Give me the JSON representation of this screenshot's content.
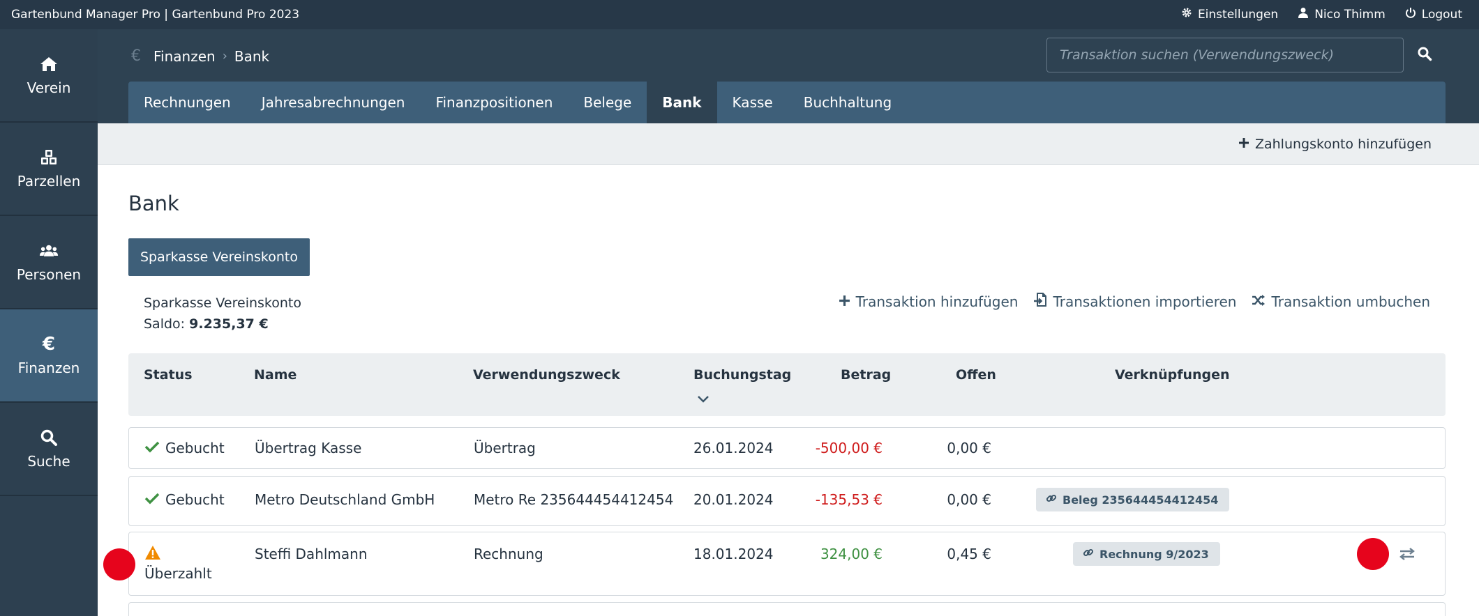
{
  "topbar": {
    "app_title": "Gartenbund Manager Pro | Gartenbund Pro 2023",
    "settings_label": "Einstellungen",
    "user_label": "Nico Thimm",
    "logout_label": "Logout"
  },
  "sidebar": {
    "items": [
      {
        "label": "Verein",
        "icon": "home-icon"
      },
      {
        "label": "Parzellen",
        "icon": "cubes-icon"
      },
      {
        "label": "Personen",
        "icon": "users-icon"
      },
      {
        "label": "Finanzen",
        "icon": "euro-icon",
        "active": true
      },
      {
        "label": "Suche",
        "icon": "search-icon"
      }
    ]
  },
  "breadcrumb": {
    "level1": "Finanzen",
    "level2": "Bank"
  },
  "search": {
    "placeholder": "Transaktion suchen (Verwendungszweck)"
  },
  "tabs": [
    "Rechnungen",
    "Jahresabrechnungen",
    "Finanzpositionen",
    "Belege",
    "Bank",
    "Kasse",
    "Buchhaltung"
  ],
  "active_tab": "Bank",
  "actionbar": {
    "add_account_label": "Zahlungskonto hinzufügen"
  },
  "page": {
    "title": "Bank",
    "account_button_label": "Sparkasse Vereinskonto",
    "account_name": "Sparkasse Vereinskonto",
    "saldo_label": "Saldo:",
    "saldo_value": "9.235,37 €"
  },
  "account_actions": {
    "add_label": "Transaktion hinzufügen",
    "import_label": "Transaktionen importieren",
    "rebook_label": "Transaktion umbuchen"
  },
  "table": {
    "headers": {
      "status": "Status",
      "name": "Name",
      "purpose": "Verwendungszweck",
      "date": "Buchungstag",
      "amount": "Betrag",
      "open": "Offen",
      "links": "Verknüpfungen"
    },
    "rows": [
      {
        "status": "Gebucht",
        "status_icon": "check-icon",
        "name": "Übertrag Kasse",
        "purpose": "Übertrag",
        "date": "26.01.2024",
        "amount": "-500,00 €",
        "open": "0,00 €",
        "link": ""
      },
      {
        "status": "Gebucht",
        "status_icon": "check-icon",
        "name": "Metro Deutschland GmbH",
        "purpose": "Metro Re 235644454412454",
        "date": "20.01.2024",
        "amount": "-135,53 €",
        "open": "0,00 €",
        "link": "Beleg 235644454412454"
      },
      {
        "status": "Überzahlt",
        "status_icon": "warning-icon",
        "name": "Steffi Dahlmann",
        "purpose": "Rechnung",
        "date": "18.01.2024",
        "amount": "324,00 €",
        "open": "0,45 €",
        "link": "Rechnung 9/2023"
      }
    ]
  },
  "colors": {
    "topbar": "#273848",
    "sidebar": "#2d4050",
    "accent": "#3e5f79",
    "negative": "#cf1c1c",
    "positive": "#3f9142",
    "warning": "#f08a00",
    "marker": "#e6041c"
  }
}
